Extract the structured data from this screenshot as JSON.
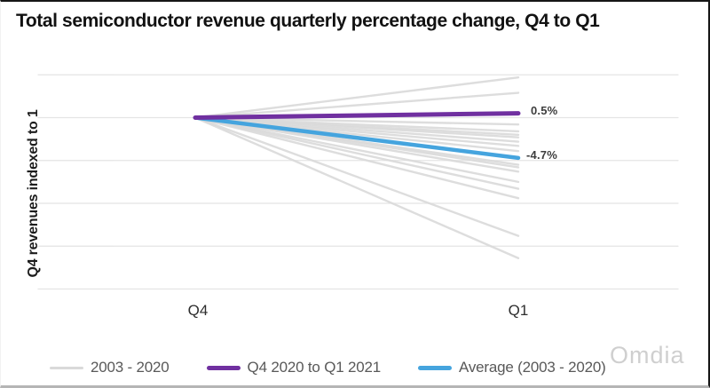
{
  "title": "Total semiconductor revenue quarterly percentage change, Q4 to Q1",
  "y_axis": {
    "label": "Q4 revenues indexed to 1"
  },
  "x_axis": {
    "labels": [
      "Q4",
      "Q1"
    ]
  },
  "annotations": {
    "purple_end_label": "0.5%",
    "blue_end_label": "-4.7%"
  },
  "legend": {
    "items": [
      {
        "label": "2003 - 2020",
        "color": "#d9d9d9"
      },
      {
        "label": "Q4 2020 to Q1 2021",
        "color": "#7030a0"
      },
      {
        "label": "Average (2003 - 2020)",
        "color": "#45a4de"
      }
    ]
  },
  "watermark": "Omdia",
  "colors": {
    "gridline": "#e4e4e4",
    "historical_gray": "#d9d9d9",
    "q4_2020_purple": "#7030a0",
    "average_blue": "#45a4de"
  },
  "chart_data": {
    "type": "line",
    "variant": "slope",
    "title": "Total semiconductor revenue quarterly percentage change, Q4 to Q1",
    "xlabel": "",
    "ylabel": "Q4 revenues indexed to 1",
    "x_categories": [
      "Q4",
      "Q1"
    ],
    "start_value_index": 1.0,
    "y_gridline_index_values": [
      1.05,
      1.0,
      0.95,
      0.9,
      0.85,
      0.8
    ],
    "ylim": [
      0.78,
      1.07
    ],
    "grid": true,
    "legend_position": "bottom",
    "series": [
      {
        "name": "2003 - 2020",
        "role": "historical-years",
        "color": "#d9d9d9",
        "q4_to_q1_pct_changes": [
          4.7,
          2.9,
          -0.8,
          -1.6,
          -2.0,
          -2.3,
          -2.8,
          -3.3,
          -3.9,
          -5.5,
          -5.8,
          -6.3,
          -7.5,
          -8.3,
          -9.4,
          -13.8,
          -16.4
        ]
      },
      {
        "name": "Q4 2020 to Q1 2021",
        "role": "highlight-current",
        "color": "#7030a0",
        "q4_to_q1_pct_changes": [
          0.5
        ],
        "end_label": "0.5%"
      },
      {
        "name": "Average (2003 - 2020)",
        "role": "highlight-average",
        "color": "#45a4de",
        "q4_to_q1_pct_changes": [
          -4.7
        ],
        "end_label": "-4.7%"
      }
    ]
  }
}
